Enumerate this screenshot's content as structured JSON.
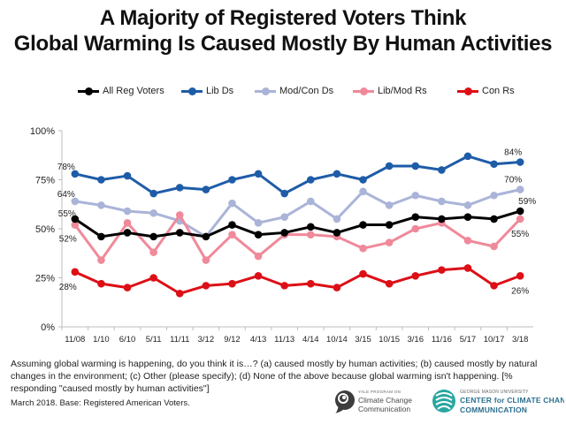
{
  "title_lines": [
    "A Majority of Registered Voters Think",
    "Global Warming Is Caused Mostly By Human Activities"
  ],
  "question": "Assuming global warming is happening, do you think it is…? (a) caused mostly by human activities; (b) caused mostly by natural changes in the environment; (c) Other (please specify); (d) None of the above because global warming isn't happening. [% responding \"caused mostly by human activities\"]",
  "base_note": "March 2018. Base: Registered American Voters.",
  "logos": {
    "ypcc_small": "YALE PROGRAM ON",
    "ypcc_line1": "Climate Change",
    "ypcc_line2": "Communication",
    "gmu_small": "GEORGE MASON UNIVERSITY",
    "gmu_line1": "CENTER for CLIMATE CHANGE",
    "gmu_line2": "COMMUNICATION"
  },
  "chart_data": {
    "type": "line",
    "title": "A Majority of Registered Voters Think Global Warming Is Caused Mostly By Human Activities",
    "xlabel": "",
    "ylabel": "",
    "ylim": [
      0,
      100
    ],
    "y_ticks": [
      "0%",
      "25%",
      "50%",
      "75%",
      "100%"
    ],
    "grid": false,
    "legend_position": "top",
    "categories": [
      "11/08",
      "1/10",
      "6/10",
      "5/11",
      "11/11",
      "3/12",
      "9/12",
      "4/13",
      "11/13",
      "4/14",
      "10/14",
      "3/15",
      "10/15",
      "3/16",
      "11/16",
      "5/17",
      "10/17",
      "3/18"
    ],
    "series": [
      {
        "name": "All Reg Voters",
        "color": "#000000",
        "values": [
          55,
          46,
          48,
          46,
          48,
          46,
          52,
          47,
          48,
          51,
          48,
          52,
          52,
          56,
          55,
          56,
          55,
          59
        ],
        "labels": [
          {
            "index": 0,
            "text": "55%"
          },
          {
            "index": 17,
            "text": "59%"
          }
        ]
      },
      {
        "name": "Lib Ds",
        "color": "#1f5ca8",
        "values": [
          78,
          75,
          77,
          68,
          71,
          70,
          75,
          78,
          68,
          75,
          78,
          75,
          82,
          82,
          80,
          87,
          83,
          84
        ],
        "labels": [
          {
            "index": 0,
            "text": "78%"
          },
          {
            "index": 17,
            "text": "84%"
          }
        ]
      },
      {
        "name": "Mod/Con Ds",
        "color": "#aab4d8",
        "values": [
          64,
          62,
          59,
          58,
          54,
          46,
          63,
          53,
          56,
          64,
          55,
          69,
          62,
          67,
          64,
          62,
          67,
          70
        ],
        "labels": [
          {
            "index": 0,
            "text": "64%"
          },
          {
            "index": 17,
            "text": "70%"
          }
        ]
      },
      {
        "name": "Lib/Mod Rs",
        "color": "#f0899a",
        "values": [
          52,
          34,
          53,
          38,
          57,
          34,
          47,
          36,
          47,
          47,
          46,
          40,
          43,
          50,
          53,
          44,
          41,
          55
        ],
        "labels": [
          {
            "index": 0,
            "text": "52%"
          },
          {
            "index": 17,
            "text": "55%"
          }
        ]
      },
      {
        "name": "Con Rs",
        "color": "#dd0f16",
        "values": [
          28,
          22,
          20,
          25,
          17,
          21,
          22,
          26,
          21,
          22,
          20,
          27,
          22,
          26,
          29,
          30,
          21,
          26
        ],
        "labels": [
          {
            "index": 0,
            "text": "28%"
          },
          {
            "index": 17,
            "text": "26%"
          }
        ]
      }
    ]
  }
}
